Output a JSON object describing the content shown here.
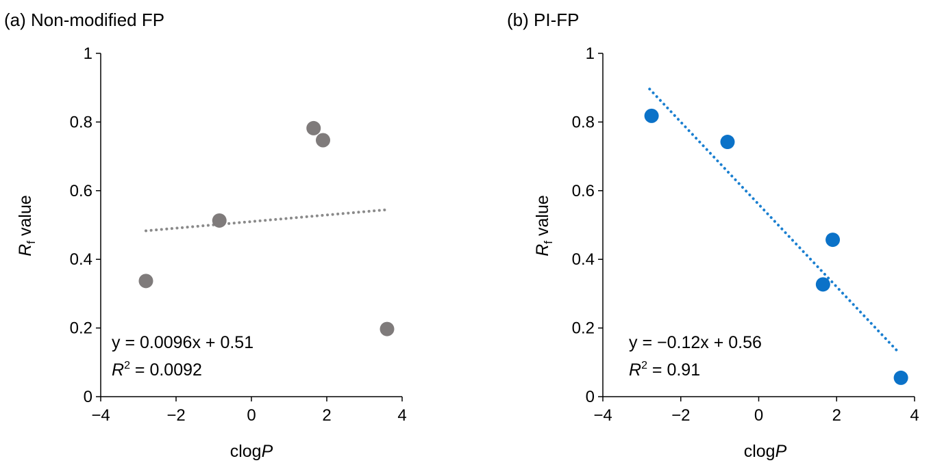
{
  "chart_data": [
    {
      "type": "scatter",
      "title": "(a) Non-modified FP",
      "xlabel": {
        "base": "clog",
        "italic": "P"
      },
      "ylabel": {
        "italic": "R",
        "sub": "f",
        "rest": " value"
      },
      "xlim": [
        -4,
        4
      ],
      "ylim": [
        0,
        1
      ],
      "xticks": [
        -4,
        -2,
        0,
        2,
        4
      ],
      "xtick_labels": [
        "−4",
        "−2",
        "0",
        "2",
        "4"
      ],
      "yticks": [
        0,
        0.2,
        0.4,
        0.6,
        0.8,
        1
      ],
      "ytick_labels": [
        "0",
        "0.2",
        "0.4",
        "0.6",
        "0.8",
        "1"
      ],
      "grid": false,
      "points": [
        {
          "x": -2.8,
          "y": 0.337
        },
        {
          "x": -0.85,
          "y": 0.513
        },
        {
          "x": 1.65,
          "y": 0.782
        },
        {
          "x": 1.9,
          "y": 0.747
        },
        {
          "x": 3.6,
          "y": 0.197
        }
      ],
      "marker_color": "#7f7b7b",
      "trendline": {
        "slope": 0.0096,
        "intercept": 0.51,
        "x_range": [
          -2.8,
          3.6
        ],
        "style": "dotted",
        "color": "#8a8a8a"
      },
      "equation": "y = 0.0096x + 0.51",
      "r2": {
        "label_italic": "R",
        "sup": "2",
        "value": " = 0.0092"
      }
    },
    {
      "type": "scatter",
      "title": "(b) PI-FP",
      "xlabel": {
        "base": "clog",
        "italic": "P"
      },
      "ylabel": {
        "italic": "R",
        "sub": "f",
        "rest": " value"
      },
      "xlim": [
        -4,
        4
      ],
      "ylim": [
        0,
        1
      ],
      "xticks": [
        -4,
        -2,
        0,
        2,
        4
      ],
      "xtick_labels": [
        "−4",
        "−2",
        "0",
        "2",
        "4"
      ],
      "yticks": [
        0,
        0.2,
        0.4,
        0.6,
        0.8,
        1
      ],
      "ytick_labels": [
        "0",
        "0.2",
        "0.4",
        "0.6",
        "0.8",
        "1"
      ],
      "grid": false,
      "points": [
        {
          "x": -2.75,
          "y": 0.818
        },
        {
          "x": -0.8,
          "y": 0.742
        },
        {
          "x": 1.65,
          "y": 0.327
        },
        {
          "x": 1.9,
          "y": 0.457
        },
        {
          "x": 3.65,
          "y": 0.055
        }
      ],
      "marker_color": "#0b72c8",
      "trendline": {
        "slope": -0.12,
        "intercept": 0.56,
        "x_range": [
          -2.8,
          3.6
        ],
        "style": "dotted",
        "color": "#1a7fd0"
      },
      "equation": "y = −0.12x + 0.56",
      "r2": {
        "label_italic": "R",
        "sup": "2",
        "value": " = 0.91"
      }
    }
  ]
}
